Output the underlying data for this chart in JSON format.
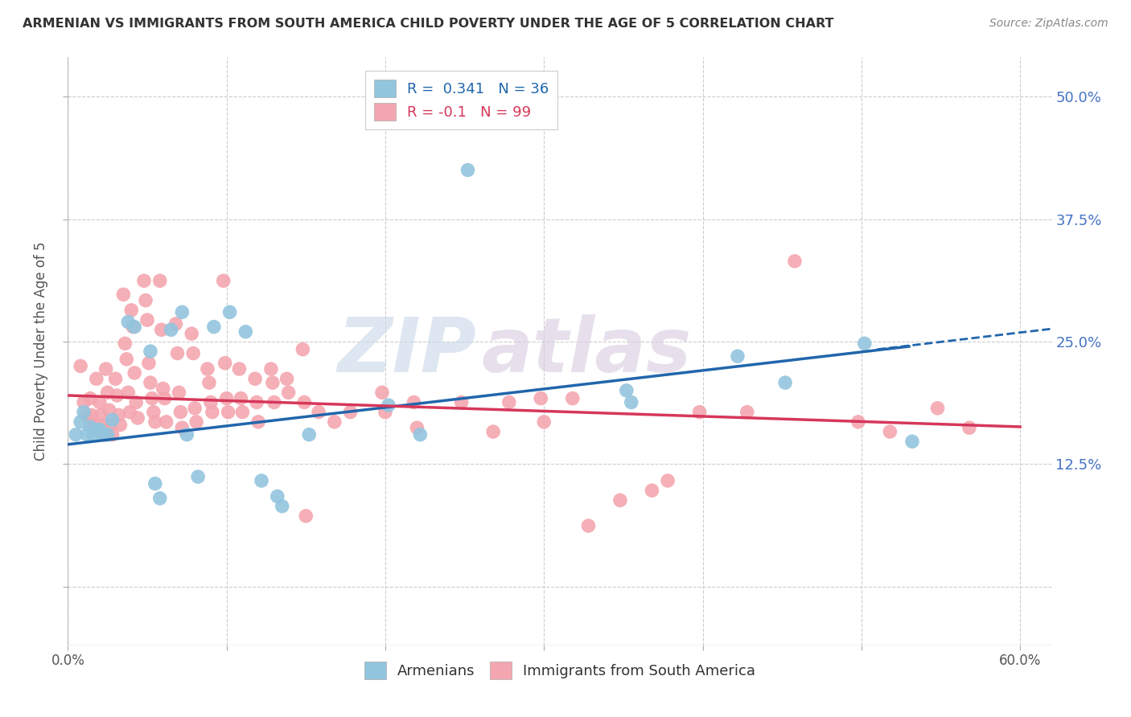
{
  "title": "ARMENIAN VS IMMIGRANTS FROM SOUTH AMERICA CHILD POVERTY UNDER THE AGE OF 5 CORRELATION CHART",
  "source": "Source: ZipAtlas.com",
  "ylabel": "Child Poverty Under the Age of 5",
  "xlim": [
    0.0,
    0.62
  ],
  "ylim": [
    -0.06,
    0.54
  ],
  "yticks": [
    0.0,
    0.125,
    0.25,
    0.375,
    0.5
  ],
  "ytick_labels_right": [
    "",
    "12.5%",
    "25.0%",
    "37.5%",
    "50.0%"
  ],
  "xticks": [
    0.0,
    0.1,
    0.2,
    0.3,
    0.4,
    0.5,
    0.6
  ],
  "xtick_labels": [
    "0.0%",
    "",
    "",
    "",
    "",
    "",
    "60.0%"
  ],
  "legend_label1": "Armenians",
  "legend_label2": "Immigrants from South America",
  "r1": 0.341,
  "n1": 36,
  "r2": -0.1,
  "n2": 99,
  "blue_line_x0": 0.0,
  "blue_line_y0": 0.145,
  "blue_line_x1": 0.53,
  "blue_line_y1": 0.245,
  "blue_line_dash_x0": 0.51,
  "blue_line_dash_y0": 0.242,
  "blue_line_dash_x1": 0.62,
  "blue_line_dash_y1": 0.263,
  "pink_line_x0": 0.0,
  "pink_line_y0": 0.195,
  "pink_line_x1": 0.6,
  "pink_line_y1": 0.163,
  "scatter_blue": [
    [
      0.005,
      0.155
    ],
    [
      0.008,
      0.168
    ],
    [
      0.01,
      0.178
    ],
    [
      0.012,
      0.155
    ],
    [
      0.014,
      0.163
    ],
    [
      0.016,
      0.155
    ],
    [
      0.018,
      0.16
    ],
    [
      0.02,
      0.16
    ],
    [
      0.022,
      0.155
    ],
    [
      0.025,
      0.155
    ],
    [
      0.028,
      0.17
    ],
    [
      0.038,
      0.27
    ],
    [
      0.042,
      0.265
    ],
    [
      0.052,
      0.24
    ],
    [
      0.055,
      0.105
    ],
    [
      0.058,
      0.09
    ],
    [
      0.065,
      0.262
    ],
    [
      0.072,
      0.28
    ],
    [
      0.075,
      0.155
    ],
    [
      0.082,
      0.112
    ],
    [
      0.092,
      0.265
    ],
    [
      0.102,
      0.28
    ],
    [
      0.112,
      0.26
    ],
    [
      0.122,
      0.108
    ],
    [
      0.132,
      0.092
    ],
    [
      0.135,
      0.082
    ],
    [
      0.152,
      0.155
    ],
    [
      0.202,
      0.185
    ],
    [
      0.222,
      0.155
    ],
    [
      0.252,
      0.425
    ],
    [
      0.352,
      0.2
    ],
    [
      0.355,
      0.188
    ],
    [
      0.422,
      0.235
    ],
    [
      0.452,
      0.208
    ],
    [
      0.502,
      0.248
    ],
    [
      0.532,
      0.148
    ]
  ],
  "scatter_pink": [
    [
      0.008,
      0.225
    ],
    [
      0.01,
      0.188
    ],
    [
      0.012,
      0.175
    ],
    [
      0.014,
      0.192
    ],
    [
      0.015,
      0.175
    ],
    [
      0.016,
      0.165
    ],
    [
      0.017,
      0.162
    ],
    [
      0.018,
      0.212
    ],
    [
      0.02,
      0.188
    ],
    [
      0.021,
      0.175
    ],
    [
      0.022,
      0.165
    ],
    [
      0.023,
      0.155
    ],
    [
      0.024,
      0.222
    ],
    [
      0.025,
      0.198
    ],
    [
      0.026,
      0.18
    ],
    [
      0.027,
      0.165
    ],
    [
      0.028,
      0.155
    ],
    [
      0.03,
      0.212
    ],
    [
      0.031,
      0.195
    ],
    [
      0.032,
      0.175
    ],
    [
      0.033,
      0.165
    ],
    [
      0.035,
      0.298
    ],
    [
      0.036,
      0.248
    ],
    [
      0.037,
      0.232
    ],
    [
      0.038,
      0.198
    ],
    [
      0.039,
      0.178
    ],
    [
      0.04,
      0.282
    ],
    [
      0.041,
      0.265
    ],
    [
      0.042,
      0.218
    ],
    [
      0.043,
      0.188
    ],
    [
      0.044,
      0.172
    ],
    [
      0.048,
      0.312
    ],
    [
      0.049,
      0.292
    ],
    [
      0.05,
      0.272
    ],
    [
      0.051,
      0.228
    ],
    [
      0.052,
      0.208
    ],
    [
      0.053,
      0.192
    ],
    [
      0.054,
      0.178
    ],
    [
      0.055,
      0.168
    ],
    [
      0.058,
      0.312
    ],
    [
      0.059,
      0.262
    ],
    [
      0.06,
      0.202
    ],
    [
      0.061,
      0.192
    ],
    [
      0.062,
      0.168
    ],
    [
      0.068,
      0.268
    ],
    [
      0.069,
      0.238
    ],
    [
      0.07,
      0.198
    ],
    [
      0.071,
      0.178
    ],
    [
      0.072,
      0.162
    ],
    [
      0.078,
      0.258
    ],
    [
      0.079,
      0.238
    ],
    [
      0.08,
      0.182
    ],
    [
      0.081,
      0.168
    ],
    [
      0.088,
      0.222
    ],
    [
      0.089,
      0.208
    ],
    [
      0.09,
      0.188
    ],
    [
      0.091,
      0.178
    ],
    [
      0.098,
      0.312
    ],
    [
      0.099,
      0.228
    ],
    [
      0.1,
      0.192
    ],
    [
      0.101,
      0.178
    ],
    [
      0.108,
      0.222
    ],
    [
      0.109,
      0.192
    ],
    [
      0.11,
      0.178
    ],
    [
      0.118,
      0.212
    ],
    [
      0.119,
      0.188
    ],
    [
      0.12,
      0.168
    ],
    [
      0.128,
      0.222
    ],
    [
      0.129,
      0.208
    ],
    [
      0.13,
      0.188
    ],
    [
      0.138,
      0.212
    ],
    [
      0.139,
      0.198
    ],
    [
      0.148,
      0.242
    ],
    [
      0.149,
      0.188
    ],
    [
      0.15,
      0.072
    ],
    [
      0.158,
      0.178
    ],
    [
      0.168,
      0.168
    ],
    [
      0.178,
      0.178
    ],
    [
      0.198,
      0.198
    ],
    [
      0.2,
      0.178
    ],
    [
      0.218,
      0.188
    ],
    [
      0.22,
      0.162
    ],
    [
      0.248,
      0.188
    ],
    [
      0.268,
      0.158
    ],
    [
      0.278,
      0.188
    ],
    [
      0.298,
      0.192
    ],
    [
      0.3,
      0.168
    ],
    [
      0.318,
      0.192
    ],
    [
      0.328,
      0.062
    ],
    [
      0.348,
      0.088
    ],
    [
      0.368,
      0.098
    ],
    [
      0.378,
      0.108
    ],
    [
      0.398,
      0.178
    ],
    [
      0.428,
      0.178
    ],
    [
      0.458,
      0.332
    ],
    [
      0.498,
      0.168
    ],
    [
      0.518,
      0.158
    ],
    [
      0.548,
      0.182
    ],
    [
      0.568,
      0.162
    ]
  ],
  "blue_color": "#92c5de",
  "pink_color": "#f4a6b0",
  "blue_line_color": "#2166ac",
  "pink_line_color": "#d6375a",
  "watermark_zip_color": "#c8d8e8",
  "watermark_atlas_color": "#d8cce0",
  "background_color": "#ffffff",
  "grid_color": "#cccccc",
  "grid_linestyle": "--"
}
